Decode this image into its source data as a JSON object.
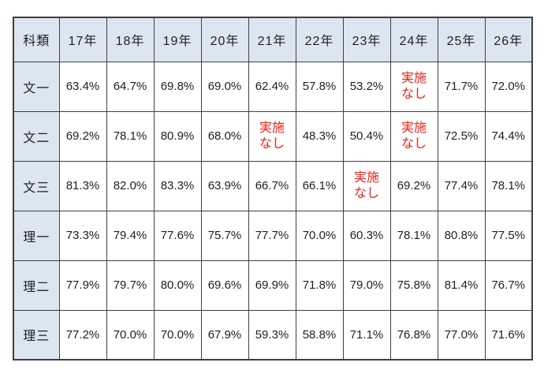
{
  "colors": {
    "border": "#3f3f3f",
    "header_bg": "#dce6f1",
    "text": "#1f1f1f",
    "na_text_color": "#e8251d",
    "page_bg": "#ffffff"
  },
  "table": {
    "na_text": "実施なし",
    "na_lines": [
      "実施",
      "なし"
    ],
    "header": [
      "科類",
      "17年",
      "18年",
      "19年",
      "20年",
      "21年",
      "22年",
      "23年",
      "24年",
      "25年",
      "26年"
    ],
    "rows": [
      {
        "label": "文一",
        "values": [
          "63.4%",
          "64.7%",
          "69.8%",
          "69.0%",
          "62.4%",
          "57.8%",
          "53.2%",
          "実施なし",
          "71.7%",
          "72.0%"
        ]
      },
      {
        "label": "文二",
        "values": [
          "69.2%",
          "78.1%",
          "80.9%",
          "68.0%",
          "実施なし",
          "48.3%",
          "50.4%",
          "実施なし",
          "72.5%",
          "74.4%"
        ]
      },
      {
        "label": "文三",
        "values": [
          "81.3%",
          "82.0%",
          "83.3%",
          "63.9%",
          "66.7%",
          "66.1%",
          "実施なし",
          "69.2%",
          "77.4%",
          "78.1%"
        ]
      },
      {
        "label": "理一",
        "values": [
          "73.3%",
          "79.4%",
          "77.6%",
          "75.7%",
          "77.7%",
          "70.0%",
          "60.3%",
          "78.1%",
          "80.8%",
          "77.5%"
        ]
      },
      {
        "label": "理二",
        "values": [
          "77.9%",
          "79.7%",
          "80.0%",
          "69.6%",
          "69.9%",
          "71.8%",
          "79.0%",
          "75.8%",
          "81.4%",
          "76.7%"
        ]
      },
      {
        "label": "理三",
        "values": [
          "77.2%",
          "70.0%",
          "70.0%",
          "67.9%",
          "59.3%",
          "58.8%",
          "71.1%",
          "76.8%",
          "77.0%",
          "71.6%"
        ]
      }
    ]
  }
}
